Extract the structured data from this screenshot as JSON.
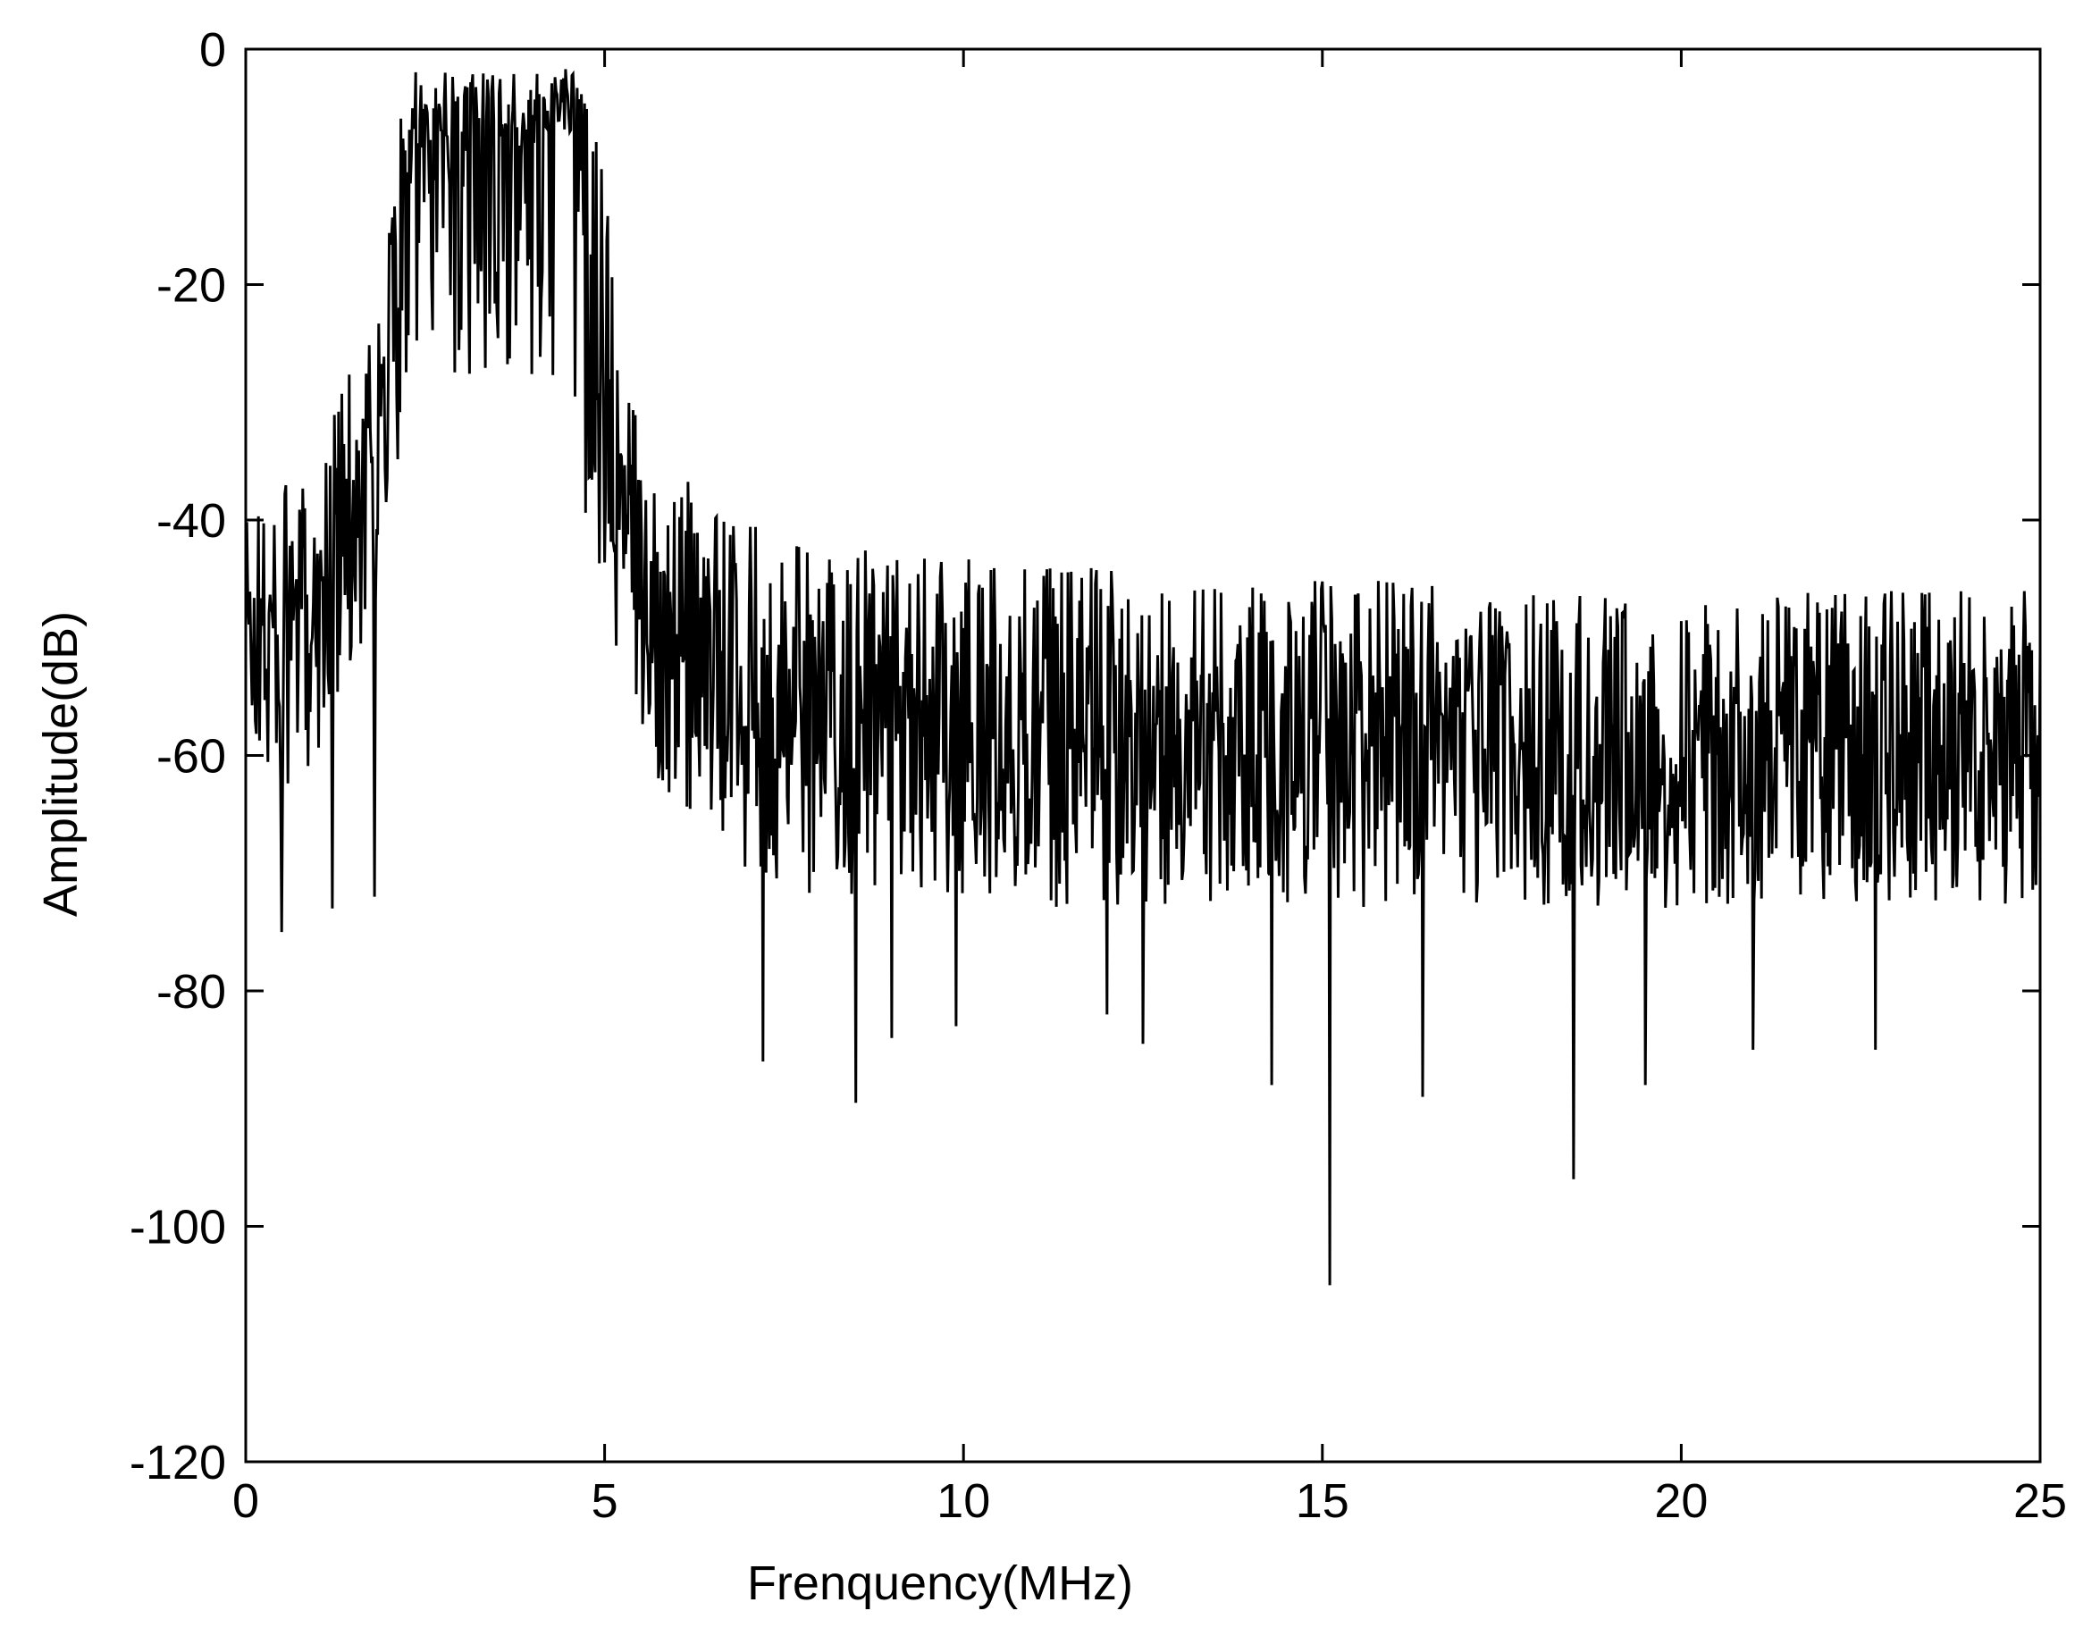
{
  "chart_data": {
    "type": "line",
    "title": "",
    "xlabel": "Frenquency(MHz)",
    "ylabel": "Amplitude(dB)",
    "xlim": [
      0,
      25
    ],
    "ylim": [
      -120,
      0
    ],
    "xticks": [
      0,
      5,
      10,
      15,
      20,
      25
    ],
    "xtick_labels": [
      "0",
      "5",
      "10",
      "15",
      "20",
      "25"
    ],
    "yticks": [
      0,
      -20,
      -40,
      -60,
      -80,
      -100,
      -120
    ],
    "ytick_labels": [
      "0",
      "-20",
      "-40",
      "-60",
      "-80",
      "-100",
      "-120"
    ],
    "grid": false,
    "line_color": "#000000",
    "series": [
      {
        "name": "",
        "x": [
          0,
          0.25,
          0.5,
          0.75,
          1.0,
          1.25,
          1.5,
          1.75,
          2.0,
          2.25,
          2.5,
          2.75,
          3.0,
          3.25,
          3.5,
          3.75,
          4.0,
          4.25,
          4.5,
          4.75,
          5.0,
          5.25,
          5.5,
          6.0,
          6.5,
          7.0,
          7.5,
          8.0,
          8.5,
          9.0,
          9.5,
          10.0,
          11.0,
          12.0,
          13.0,
          14.0,
          15.0,
          16.0,
          17.0,
          18.0,
          19.0,
          20.0,
          21.0,
          22.0,
          23.0,
          24.0,
          25.0
        ],
        "upper": [
          -38,
          -38,
          -37,
          -37,
          -35,
          -30,
          -26,
          -22,
          -14,
          -1,
          -3,
          -2,
          -2,
          -2,
          -2,
          -2,
          -2,
          -2,
          -1,
          -3,
          -10,
          -26,
          -32,
          -36,
          -38,
          -40,
          -41,
          -42,
          -42,
          -43,
          -43,
          -43,
          -44,
          -44,
          -45,
          -45,
          -45,
          -45,
          -46,
          -46,
          -46,
          -46,
          -46,
          -46,
          -46,
          -46,
          -46
        ],
        "lower": [
          -61,
          -62,
          -66,
          -62,
          -60,
          -56,
          -53,
          -50,
          -41,
          -31,
          -29,
          -28,
          -28,
          -28,
          -28,
          -28,
          -28,
          -30,
          -31,
          -40,
          -48,
          -56,
          -60,
          -64,
          -67,
          -70,
          -71,
          -72,
          -72,
          -72,
          -72,
          -72,
          -73,
          -73,
          -73,
          -73,
          -73,
          -73,
          -73,
          -73,
          -73,
          -73,
          -73,
          -73,
          -73,
          -73,
          -73
        ],
        "center": [
          -50,
          -50,
          -51,
          -49,
          -47,
          -43,
          -40,
          -36,
          -28,
          -16,
          -14,
          -13,
          -13,
          -13,
          -13,
          -13,
          -13,
          -14,
          -14,
          -20,
          -30,
          -41,
          -47,
          -51,
          -54,
          -56,
          -57,
          -57,
          -57,
          -58,
          -58,
          -58,
          -58,
          -58,
          -58,
          -58,
          -58,
          -58,
          -58,
          -58,
          -58,
          -58,
          -58,
          -58,
          -58,
          -58,
          -58
        ]
      }
    ],
    "notable_dips": [
      {
        "x": 0.5,
        "y": -75
      },
      {
        "x": 1.2,
        "y": -73
      },
      {
        "x": 1.8,
        "y": -72
      },
      {
        "x": 7.2,
        "y": -86
      },
      {
        "x": 8.5,
        "y": -89.5
      },
      {
        "x": 9.0,
        "y": -84
      },
      {
        "x": 9.9,
        "y": -83
      },
      {
        "x": 12.0,
        "y": -82
      },
      {
        "x": 12.5,
        "y": -84.5
      },
      {
        "x": 14.3,
        "y": -88
      },
      {
        "x": 15.1,
        "y": -105
      },
      {
        "x": 16.4,
        "y": -89
      },
      {
        "x": 18.5,
        "y": -96
      },
      {
        "x": 19.5,
        "y": -88
      },
      {
        "x": 21.0,
        "y": -85
      },
      {
        "x": 22.7,
        "y": -85
      }
    ]
  }
}
